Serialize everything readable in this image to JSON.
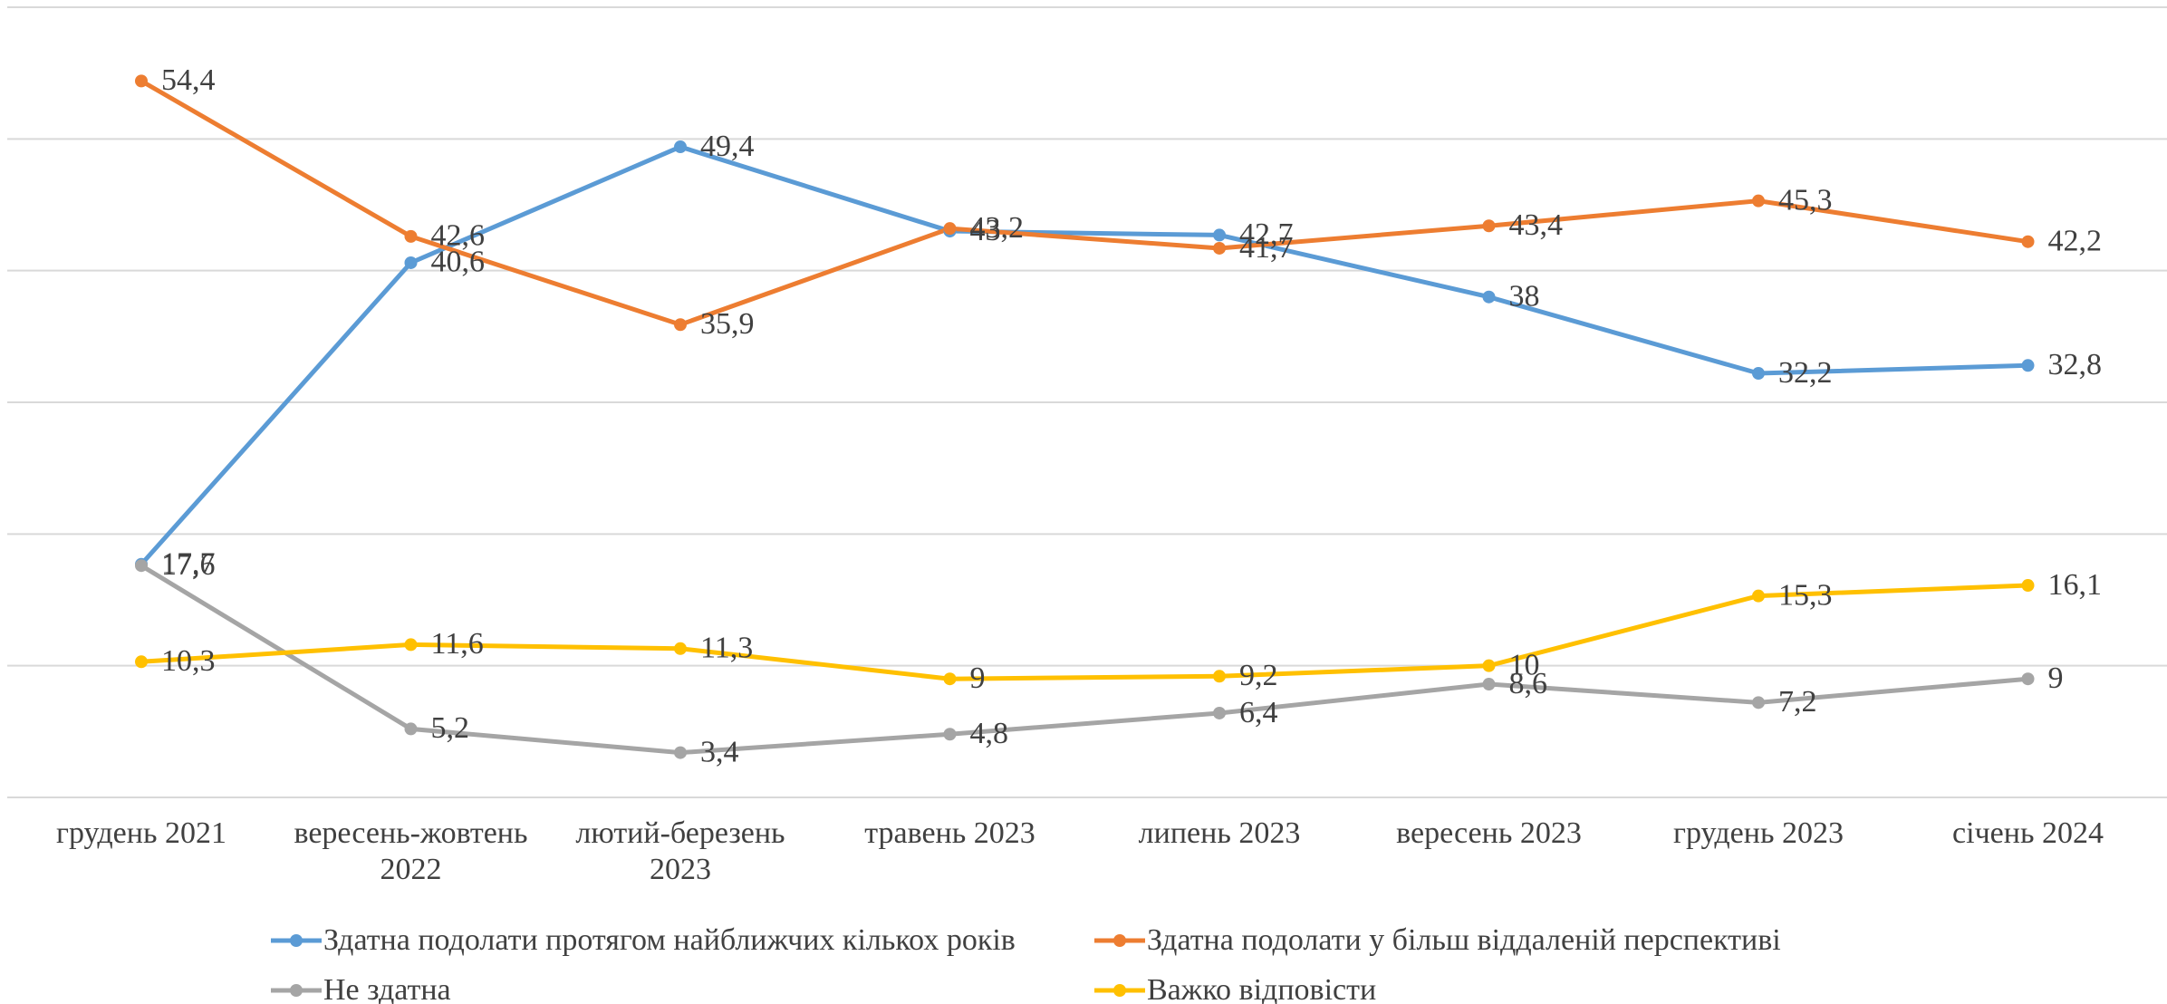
{
  "chart_data": {
    "type": "line",
    "categories": [
      "грудень 2021",
      "вересень-жовтень 2022",
      "лютий-березень 2023",
      "травень 2023",
      "липень 2023",
      "вересень 2023",
      "грудень 2023",
      "січень 2024"
    ],
    "ylim": [
      0,
      60
    ],
    "yticks": [
      0,
      10,
      20,
      30,
      40,
      50,
      60
    ],
    "grid": true,
    "series": [
      {
        "name": "Здатна подолати протягом найближчих кількох років",
        "color": "#5b9bd5",
        "values": [
          17.7,
          40.6,
          49.4,
          43,
          42.7,
          38,
          32.2,
          32.8
        ],
        "value_labels": [
          "17,7",
          "40,6",
          "49,4",
          "43",
          "42,7",
          "38",
          "32,2",
          "32,8"
        ]
      },
      {
        "name": "Здатна подолати у більш віддаленій перспективі",
        "color": "#ed7d31",
        "values": [
          54.4,
          42.6,
          35.9,
          43.2,
          41.7,
          43.4,
          45.3,
          42.2
        ],
        "value_labels": [
          "54,4",
          "42,6",
          "35,9",
          "43,2",
          "41,7",
          "43,4",
          "45,3",
          "42,2"
        ]
      },
      {
        "name": "Не здатна",
        "color": "#a5a5a5",
        "values": [
          17.6,
          5.2,
          3.4,
          4.8,
          6.4,
          8.6,
          7.2,
          9
        ],
        "value_labels": [
          "17,6",
          "5,2",
          "3,4",
          "4,8",
          "6,4",
          "8,6",
          "7,2",
          "9"
        ]
      },
      {
        "name": "Важко відповісти",
        "color": "#ffc000",
        "values": [
          10.3,
          11.6,
          11.3,
          9,
          9.2,
          10,
          15.3,
          16.1
        ],
        "value_labels": [
          "10,3",
          "11,6",
          "11,3",
          "9",
          "9,2",
          "10",
          "15,3",
          "16,1"
        ]
      }
    ],
    "legend": "bottom"
  }
}
